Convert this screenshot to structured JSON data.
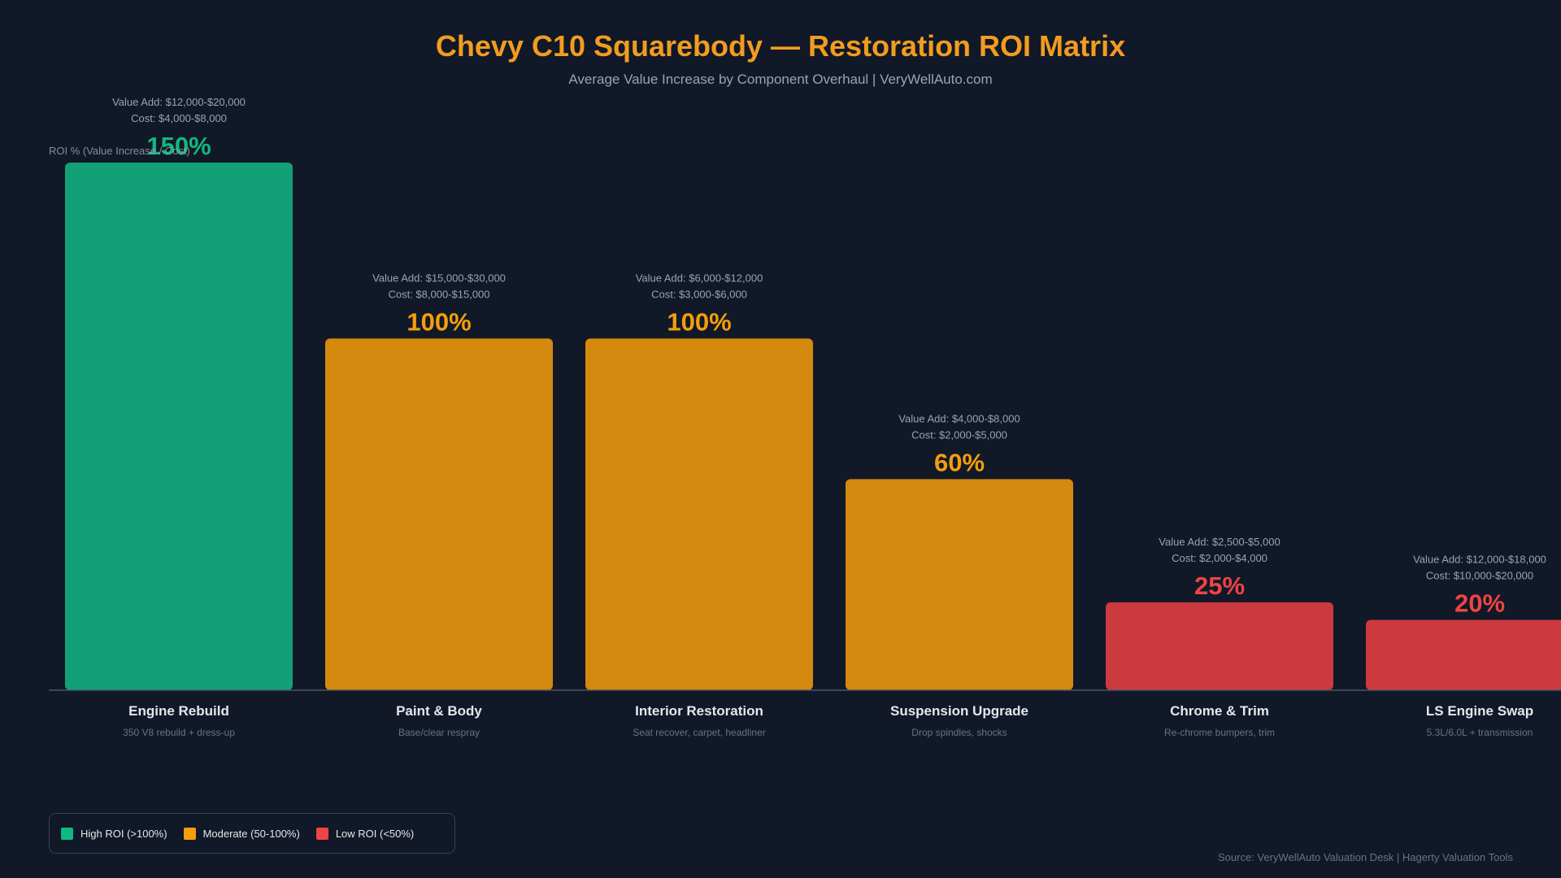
{
  "title": "Chevy C10 Squarebody — Restoration ROI Matrix",
  "subtitle": "Average Value Increase by Component Overhaul | VeryWellAuto.com",
  "source": "Source: VeryWellAuto Valuation Desk | Hagerty Valuation Tools",
  "colors": {
    "high": "#12a176",
    "moderate": "#d4890f",
    "low": "#cc3a40",
    "high_text": "#10b981",
    "moderate_text": "#f59e0b",
    "low_text": "#ef4444"
  },
  "legend": [
    {
      "label": "High ROI (>100%)",
      "tier": "high"
    },
    {
      "label": "Moderate (50-100%)",
      "tier": "moderate"
    },
    {
      "label": "Low ROI (<50%)",
      "tier": "low"
    }
  ],
  "chart_data": {
    "type": "bar",
    "ylabel": "ROI % (Value Increase / Cost)",
    "ylim": [
      0,
      150
    ],
    "categories": [
      "Engine Rebuild",
      "Paint & Body",
      "Interior Restoration",
      "Suspension Upgrade",
      "Chrome & Trim",
      "LS Engine Swap"
    ],
    "values": [
      150,
      100,
      100,
      60,
      25,
      20
    ],
    "value_labels": [
      "150%",
      "100%",
      "100%",
      "60%",
      "25%",
      "20%"
    ],
    "descriptions": [
      "350 V8 rebuild + dress-up",
      "Base/clear respray",
      "Seat recover, carpet, headliner",
      "Drop spindles, shocks",
      "Re-chrome bumpers, trim",
      "5.3L/6.0L + transmission"
    ],
    "value_add": [
      "Value Add: $12,000-$20,000",
      "Value Add: $15,000-$30,000",
      "Value Add: $6,000-$12,000",
      "Value Add: $4,000-$8,000",
      "Value Add: $2,500-$5,000",
      "Value Add: $12,000-$18,000"
    ],
    "cost": [
      "Cost: $4,000-$8,000",
      "Cost: $8,000-$15,000",
      "Cost: $3,000-$6,000",
      "Cost: $2,000-$5,000",
      "Cost: $2,000-$4,000",
      "Cost: $10,000-$20,000"
    ],
    "tiers": [
      "high",
      "moderate",
      "moderate",
      "moderate",
      "low",
      "low"
    ],
    "grid": false
  }
}
